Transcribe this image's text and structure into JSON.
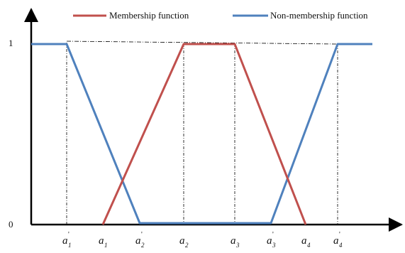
{
  "chart_data": {
    "type": "line",
    "title": "",
    "xlabel": "",
    "ylabel": "",
    "ylim": [
      0,
      1
    ],
    "y_ticks": [
      "1",
      "0"
    ],
    "x_ticks": [
      {
        "base": "a",
        "sub": "1",
        "prime": true
      },
      {
        "base": "a",
        "sub": "1",
        "prime": false
      },
      {
        "base": "a",
        "sub": "2",
        "prime": true
      },
      {
        "base": "a",
        "sub": "2",
        "prime": false
      },
      {
        "base": "a",
        "sub": "3",
        "prime": false
      },
      {
        "base": "a",
        "sub": "3",
        "prime": true
      },
      {
        "base": "a",
        "sub": "4",
        "prime": false
      },
      {
        "base": "a",
        "sub": "4",
        "prime": true
      }
    ],
    "legend_position": "top",
    "series": [
      {
        "name": "Membership function",
        "color": "#c0504d",
        "points": [
          [
            "a1",
            0
          ],
          [
            "a2",
            1
          ],
          [
            "a3",
            1
          ],
          [
            "a4",
            0
          ]
        ]
      },
      {
        "name": "Non-membership function",
        "color": "#4f81bd",
        "points": [
          [
            "start",
            1
          ],
          [
            "a1'",
            1
          ],
          [
            "a2'",
            0
          ],
          [
            "a3'",
            0
          ],
          [
            "a4'",
            1
          ],
          [
            "end",
            1
          ]
        ]
      }
    ]
  }
}
